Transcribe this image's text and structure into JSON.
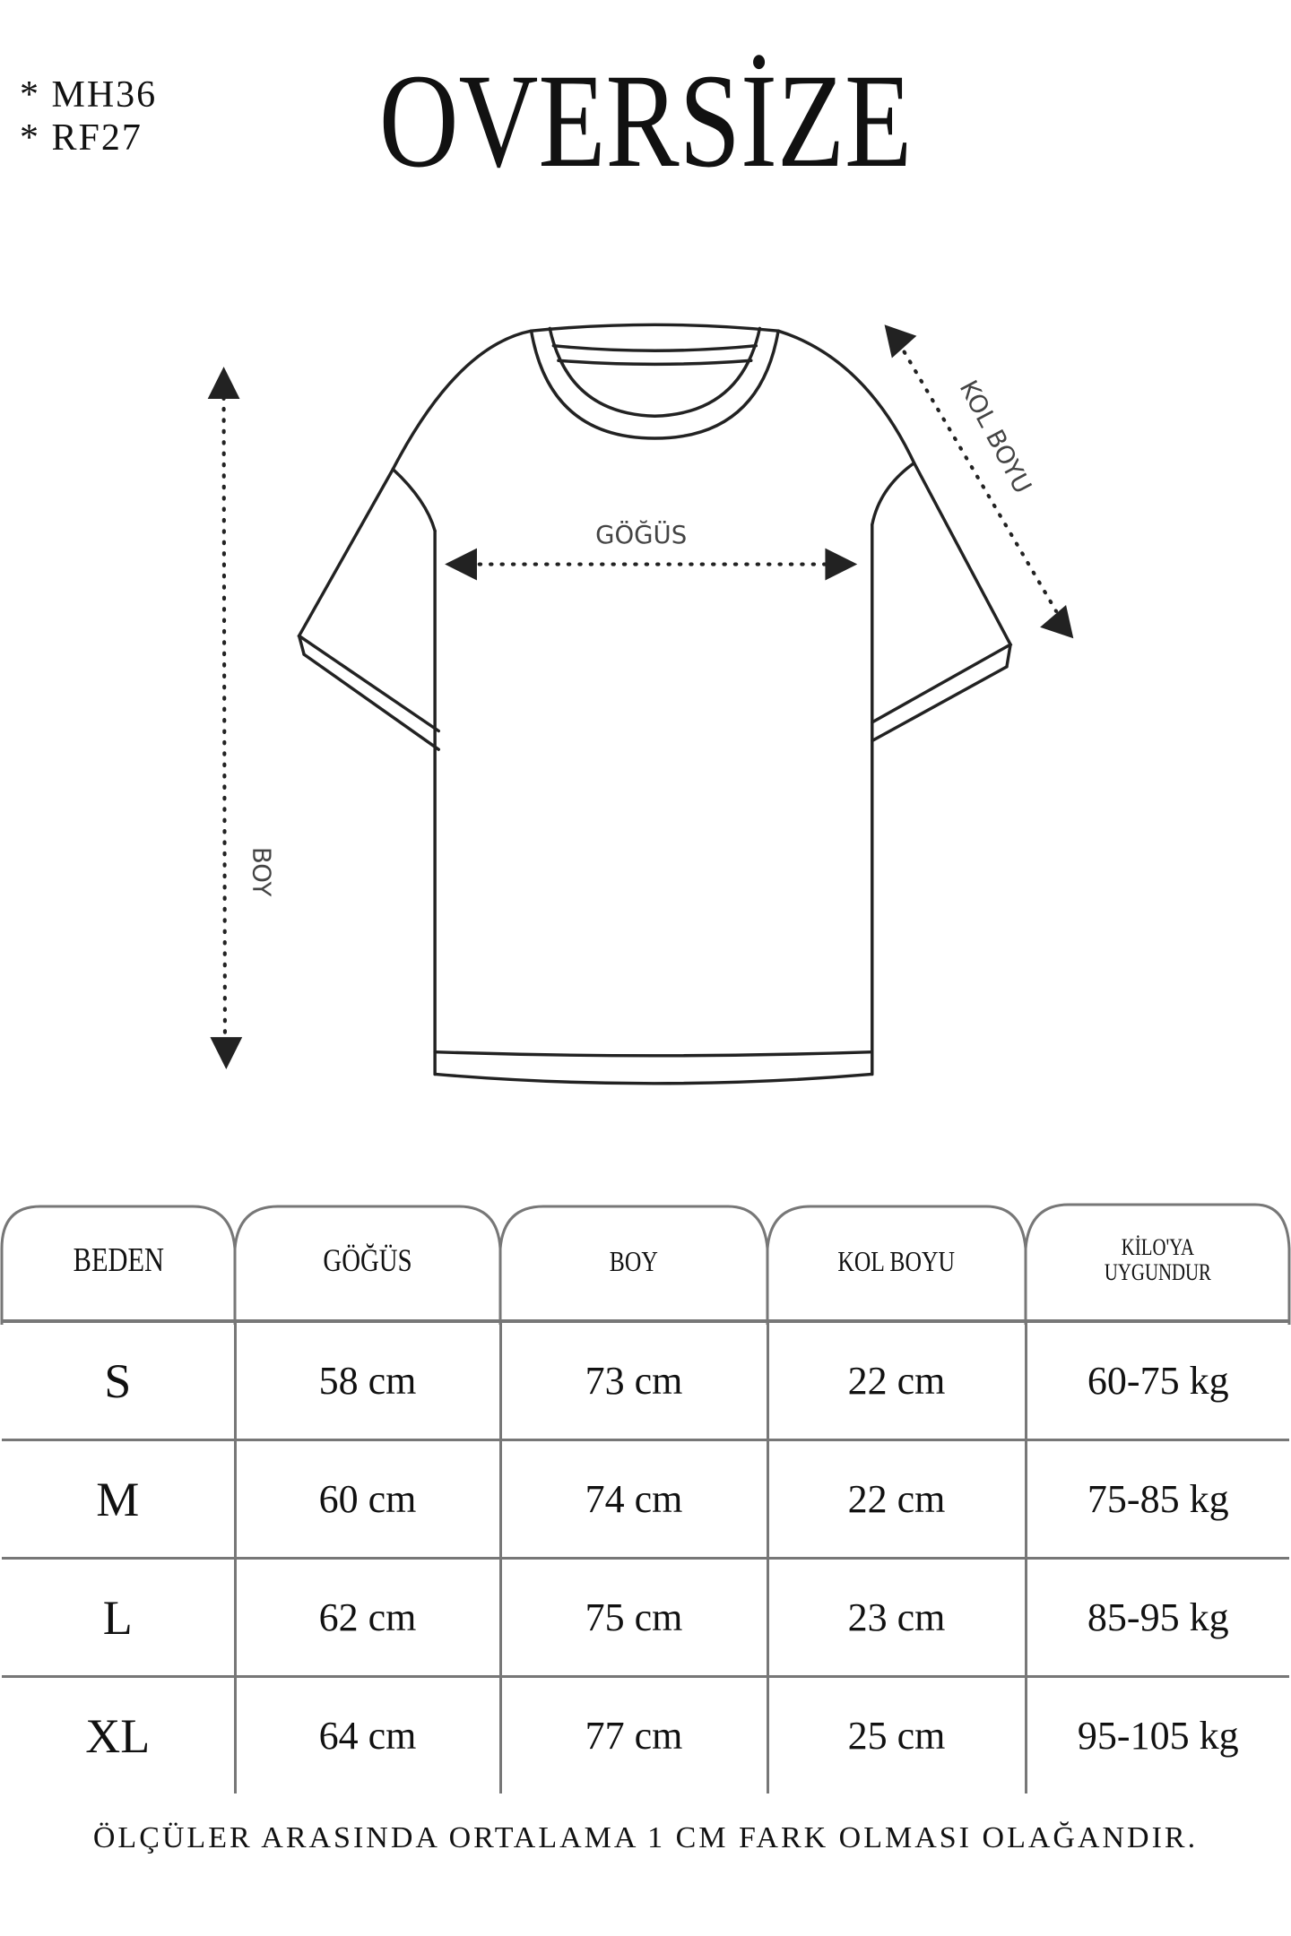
{
  "codes": [
    "*  MH36",
    "*  RF27"
  ],
  "title": "OVERSİZE",
  "diagram": {
    "labels": {
      "chest": "GÖĞÜS",
      "length": "BOY",
      "sleeve": "KOL BOYU"
    }
  },
  "table": {
    "headers": [
      "BEDEN",
      "GÖĞÜS",
      "BOY",
      "KOL BOYU",
      "KİLO'YA UYGUNDUR"
    ],
    "header_kilo_lines": [
      "KİLO'YA",
      "UYGUNDUR"
    ],
    "rows": [
      [
        "S",
        "58 cm",
        "73 cm",
        "22  cm",
        "60-75 kg"
      ],
      [
        "M",
        "60 cm",
        "74 cm",
        "22 cm",
        "75-85 kg"
      ],
      [
        "L",
        "62 cm",
        "75 cm",
        "23 cm",
        "85-95 kg"
      ],
      [
        "XL",
        "64 cm",
        "77 cm",
        "25 cm",
        "95-105 kg"
      ]
    ]
  },
  "footer": "ÖLÇÜLER ARASINDA ORTALAMA 1 CM FARK OLMASI OLAĞANDIR."
}
